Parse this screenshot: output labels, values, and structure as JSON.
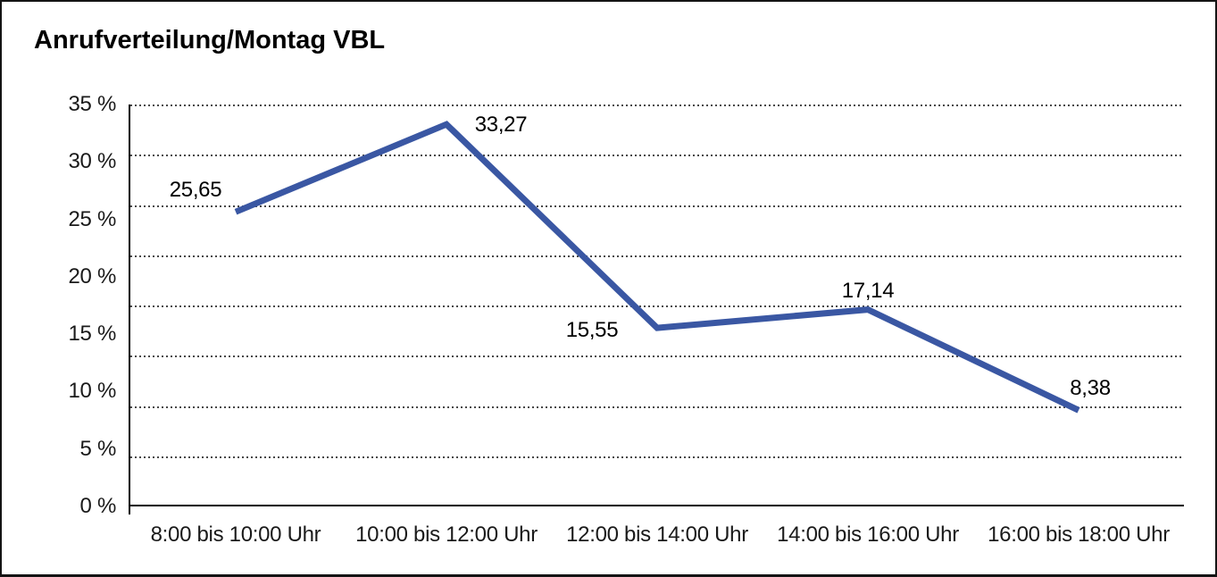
{
  "title": "Anrufverteilung/Montag VBL",
  "chart_data": {
    "type": "line",
    "title": "Anrufverteilung/Montag VBL",
    "categories": [
      "8:00 bis 10:00 Uhr",
      "10:00 bis 12:00 Uhr",
      "12:00 bis 14:00 Uhr",
      "14:00 bis 16:00 Uhr",
      "16:00 bis 18:00 Uhr"
    ],
    "values": [
      25.65,
      33.27,
      15.55,
      17.14,
      8.38
    ],
    "point_labels": [
      "25,65",
      "33,27",
      "15,55",
      "17,14",
      "8,38"
    ],
    "y_ticks": [
      "35 %",
      "30 %",
      "25 %",
      "20 %",
      "15 %",
      "10 %",
      "5 %",
      "0 %"
    ],
    "ylim": [
      0,
      35
    ],
    "xlabel": "",
    "ylabel": "",
    "legend": "none",
    "grid": "horizontal-dotted",
    "line_color": "#3A57A3",
    "axis_color": "#000000",
    "gridline_color": "#474747"
  }
}
